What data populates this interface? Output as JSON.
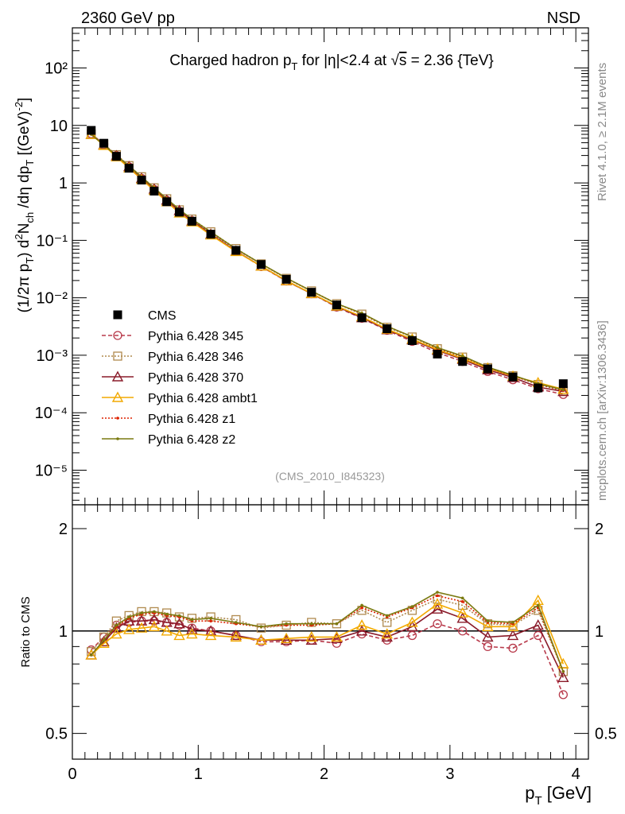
{
  "header": {
    "left_label": "2360 GeV pp",
    "right_label": "NSD"
  },
  "side_labels": {
    "top": "Rivet 4.1.0, ≥ 2.1M events",
    "bottom": "mcplots.cern.ch [arXiv:1306.3436]"
  },
  "chart_data": [
    {
      "type": "scatter",
      "panel": "main",
      "title": "Charged hadron p_T for |η|<2.4 at √s = 2.36 {TeV}",
      "title_parts": {
        "a": "Charged hadron p",
        "sub": "T",
        "b": " for |η|<2.4 at ",
        "root": "√",
        "s": "s",
        "c": " = 2.36 {TeV}"
      },
      "ylabel": "(1/2π p_T) d²N_ch/dη dp_T [(GeV)^-2]",
      "xlabel": "p_T [GeV]",
      "yscale": "log",
      "xlim": [
        0,
        4.1
      ],
      "ylim": [
        2.5e-06,
        500
      ],
      "analysis_label": "(CMS_2010_I845323)",
      "y_tick_labels": [
        "10⁻⁵",
        "10⁻⁴",
        "10⁻³",
        "10⁻²",
        "10⁻¹",
        "1",
        "10",
        "10²"
      ],
      "x": [
        0.15,
        0.25,
        0.35,
        0.45,
        0.55,
        0.65,
        0.75,
        0.85,
        0.95,
        1.1,
        1.3,
        1.5,
        1.7,
        1.9,
        2.1,
        2.3,
        2.5,
        2.7,
        2.9,
        3.1,
        3.3,
        3.5,
        3.7,
        3.9
      ],
      "series": [
        {
          "name": "CMS",
          "values": [
            8.2,
            4.9,
            2.9,
            1.8,
            1.12,
            0.72,
            0.47,
            0.31,
            0.215,
            0.128,
            0.067,
            0.038,
            0.021,
            0.0125,
            0.0075,
            0.0045,
            0.0029,
            0.0018,
            0.00105,
            0.00078,
            0.00058,
            0.00042,
            0.00027,
            0.00032
          ]
        },
        {
          "name": "Pythia 6.428 345",
          "values": [
            7.2,
            4.7,
            3.0,
            1.9,
            1.2,
            0.77,
            0.5,
            0.32,
            0.22,
            0.128,
            0.065,
            0.035,
            0.0196,
            0.0118,
            0.0069,
            0.0044,
            0.00272,
            0.00174,
            0.00111,
            0.00078,
            0.000522,
            0.000375,
            0.000262,
            0.000208
          ]
        },
        {
          "name": "Pythia 6.428 346",
          "values": [
            7.1,
            4.7,
            3.1,
            2.0,
            1.28,
            0.82,
            0.53,
            0.34,
            0.235,
            0.141,
            0.072,
            0.039,
            0.0218,
            0.0132,
            0.0079,
            0.0052,
            0.00307,
            0.00208,
            0.0013,
            0.00093,
            0.00061,
            0.00044,
            0.00031,
            0.00024
          ]
        },
        {
          "name": "Pythia 6.428 370",
          "values": [
            7.0,
            4.6,
            2.97,
            1.92,
            1.2,
            0.78,
            0.5,
            0.33,
            0.218,
            0.128,
            0.065,
            0.0357,
            0.0197,
            0.0118,
            0.0071,
            0.0045,
            0.00278,
            0.00185,
            0.00122,
            0.00085,
            0.00056,
            0.00041,
            0.00028,
            0.000234
          ]
        },
        {
          "name": "Pythia 6.428 ambt1",
          "values": [
            7.0,
            4.5,
            2.84,
            1.82,
            1.15,
            0.74,
            0.47,
            0.3,
            0.21,
            0.124,
            0.064,
            0.0357,
            0.0199,
            0.0119,
            0.0072,
            0.0047,
            0.00285,
            0.00191,
            0.00126,
            0.00088,
            0.000598,
            0.000431,
            0.000333,
            0.000256
          ]
        },
        {
          "name": "Pythia 6.428 z1",
          "values": [
            7.0,
            4.6,
            3.0,
            1.97,
            1.26,
            0.81,
            0.52,
            0.34,
            0.23,
            0.137,
            0.07,
            0.039,
            0.0219,
            0.013,
            0.0079,
            0.0053,
            0.0032,
            0.0021,
            0.00133,
            0.00095,
            0.00061,
            0.00044,
            0.000315,
            0.000244
          ]
        },
        {
          "name": "Pythia 6.428 z2",
          "values": [
            7.0,
            4.6,
            3.0,
            1.98,
            1.27,
            0.82,
            0.53,
            0.345,
            0.233,
            0.14,
            0.071,
            0.0392,
            0.0221,
            0.0131,
            0.0079,
            0.0054,
            0.0032,
            0.0021,
            0.00136,
            0.00097,
            0.00062,
            0.00045,
            0.00032,
            0.00025
          ]
        }
      ]
    },
    {
      "type": "line",
      "panel": "ratio",
      "ylabel": "Ratio to CMS",
      "xlabel": "p_T [GeV]",
      "yscale": "log",
      "xlim": [
        0,
        4.1
      ],
      "ylim": [
        0.42,
        2.35
      ],
      "y_ticks": [
        0.5,
        1,
        2
      ],
      "y_tick_labels": [
        "0.5",
        "1",
        "2"
      ],
      "x_ticks": [
        0,
        1,
        2,
        3,
        4
      ],
      "x_tick_labels": [
        "0",
        "1",
        "2",
        "3",
        "4"
      ],
      "x": [
        0.15,
        0.25,
        0.35,
        0.45,
        0.55,
        0.65,
        0.75,
        0.85,
        0.95,
        1.1,
        1.3,
        1.5,
        1.7,
        1.9,
        2.1,
        2.3,
        2.5,
        2.7,
        2.9,
        3.1,
        3.3,
        3.5,
        3.7,
        3.9
      ],
      "series": [
        {
          "name": "Pythia 6.428 345",
          "values": [
            0.88,
            0.96,
            1.04,
            1.06,
            1.07,
            1.07,
            1.06,
            1.04,
            1.02,
            1.0,
            0.97,
            0.93,
            0.93,
            0.94,
            0.92,
            0.98,
            0.94,
            0.97,
            1.05,
            1.0,
            0.9,
            0.89,
            0.97,
            0.65
          ]
        },
        {
          "name": "Pythia 6.428 346",
          "values": [
            0.87,
            0.96,
            1.07,
            1.11,
            1.14,
            1.14,
            1.13,
            1.1,
            1.09,
            1.1,
            1.08,
            1.02,
            1.04,
            1.06,
            1.05,
            1.15,
            1.06,
            1.15,
            1.24,
            1.19,
            1.05,
            1.04,
            1.15,
            0.76
          ]
        },
        {
          "name": "Pythia 6.428 370",
          "values": [
            0.85,
            0.93,
            1.02,
            1.07,
            1.07,
            1.08,
            1.06,
            1.05,
            1.01,
            1.0,
            0.97,
            0.94,
            0.94,
            0.94,
            0.95,
            1.0,
            0.96,
            1.03,
            1.16,
            1.09,
            0.96,
            0.97,
            1.04,
            0.73
          ]
        },
        {
          "name": "Pythia 6.428 ambt1",
          "values": [
            0.85,
            0.92,
            0.98,
            1.01,
            1.02,
            1.03,
            1.0,
            0.97,
            0.98,
            0.97,
            0.96,
            0.94,
            0.95,
            0.96,
            0.96,
            1.04,
            0.98,
            1.06,
            1.2,
            1.13,
            1.03,
            1.03,
            1.23,
            0.8
          ]
        },
        {
          "name": "Pythia 6.428 z1",
          "values": [
            0.85,
            0.94,
            1.03,
            1.09,
            1.12,
            1.13,
            1.11,
            1.1,
            1.07,
            1.07,
            1.05,
            1.03,
            1.04,
            1.04,
            1.05,
            1.17,
            1.1,
            1.17,
            1.27,
            1.22,
            1.06,
            1.05,
            1.17,
            0.76
          ]
        },
        {
          "name": "Pythia 6.428 z2",
          "values": [
            0.85,
            0.94,
            1.04,
            1.1,
            1.13,
            1.14,
            1.12,
            1.11,
            1.08,
            1.09,
            1.06,
            1.03,
            1.05,
            1.05,
            1.05,
            1.19,
            1.11,
            1.18,
            1.3,
            1.25,
            1.07,
            1.06,
            1.19,
            0.76
          ]
        }
      ]
    }
  ],
  "colors": {
    "CMS": "#000000",
    "Pythia 6.428 345": "#b83a4b",
    "Pythia 6.428 346": "#b08a4f",
    "Pythia 6.428 370": "#8a1b2a",
    "Pythia 6.428 ambt1": "#f2a900",
    "Pythia 6.428 z1": "#dd2200",
    "Pythia 6.428 z2": "#7a7a10"
  }
}
